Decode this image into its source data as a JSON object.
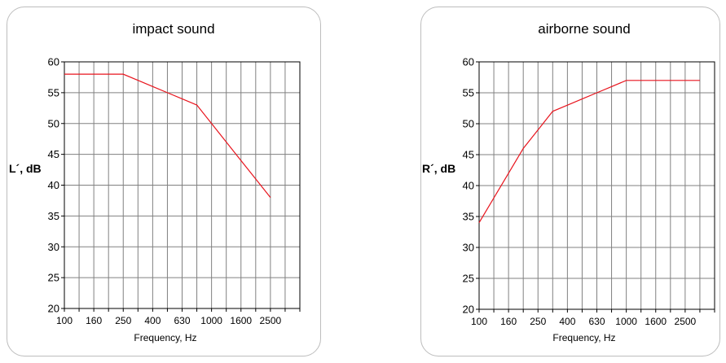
{
  "charts": [
    {
      "type": "line",
      "title": "impact sound",
      "xlabel": "Frequency, Hz",
      "ylabel": "L´, dB",
      "ylim": [
        20,
        60
      ],
      "ytick_step": 5,
      "x_tick_labels": [
        "100",
        "160",
        "250",
        "400",
        "630",
        "1000",
        "1600",
        "2500"
      ],
      "x_band_count": 16,
      "grid": true,
      "series": [
        {
          "color": "#e8141d",
          "values": [
            58,
            58,
            58,
            58,
            58,
            57,
            56,
            55,
            54,
            53,
            50,
            47,
            44,
            41,
            38
          ]
        }
      ]
    },
    {
      "type": "line",
      "title": "airborne sound",
      "xlabel": "Frequency, Hz",
      "ylabel": "R´, dB",
      "ylim": [
        20,
        60
      ],
      "ytick_step": 5,
      "x_tick_labels": [
        "100",
        "160",
        "250",
        "400",
        "630",
        "1000",
        "1600",
        "2500"
      ],
      "x_band_count": 16,
      "grid": true,
      "series": [
        {
          "color": "#e8141d",
          "values": [
            34,
            38,
            42,
            46,
            49,
            52,
            53,
            54,
            55,
            56,
            57,
            57,
            57,
            57,
            57,
            57
          ]
        }
      ]
    }
  ],
  "chart_data": [
    {
      "type": "line",
      "title": "impact sound",
      "xlabel": "Frequency, Hz",
      "ylabel": "L´, dB",
      "ylim": [
        20,
        60
      ],
      "x": [
        "100",
        "125",
        "160",
        "200",
        "250",
        "315",
        "400",
        "500",
        "630",
        "800",
        "1000",
        "1250",
        "1600",
        "2000",
        "2500"
      ],
      "series": [
        {
          "values": [
            58,
            58,
            58,
            58,
            58,
            57,
            56,
            55,
            54,
            53,
            50,
            47,
            44,
            41,
            38
          ]
        }
      ],
      "grid": true
    },
    {
      "type": "line",
      "title": "airborne sound",
      "xlabel": "Frequency, Hz",
      "ylabel": "R´, dB",
      "ylim": [
        20,
        60
      ],
      "x": [
        "100",
        "125",
        "160",
        "200",
        "250",
        "315",
        "400",
        "500",
        "630",
        "800",
        "1000",
        "1250",
        "1600",
        "2000",
        "2500",
        "3150"
      ],
      "series": [
        {
          "values": [
            34,
            38,
            42,
            46,
            49,
            52,
            53,
            54,
            55,
            56,
            57,
            57,
            57,
            57,
            57,
            57
          ]
        }
      ],
      "grid": true
    }
  ]
}
